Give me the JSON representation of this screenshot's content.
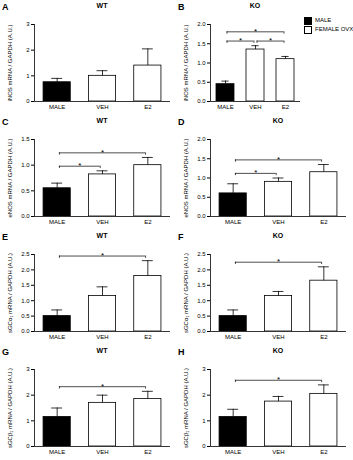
{
  "chart_data": [
    {
      "type": "bar",
      "panel": "A",
      "title": "WT",
      "ylabel": "iNOS mRNA / GAPDH (A.U.)",
      "categories": [
        "MALE",
        "VEH",
        "E2"
      ],
      "values": [
        0.75,
        1.0,
        1.4
      ],
      "errors": [
        0.15,
        0.2,
        0.65
      ],
      "colors": [
        "#000000",
        "#ffffff",
        "#ffffff"
      ],
      "ylim": [
        0,
        3
      ],
      "yticks": [
        0,
        1,
        2,
        3
      ],
      "significance": []
    },
    {
      "type": "bar",
      "panel": "B",
      "title": "KO",
      "ylabel": "iNOS mRNA / GAPDH (A.U.)",
      "categories": [
        "MALE",
        "VEH",
        "E2"
      ],
      "values": [
        0.45,
        1.35,
        1.1
      ],
      "errors": [
        0.08,
        0.1,
        0.07
      ],
      "colors": [
        "#000000",
        "#ffffff",
        "#ffffff"
      ],
      "ylim": [
        0,
        2
      ],
      "yticks": [
        {
          "value": 0,
          "label": "0.0"
        },
        {
          "value": 0.5,
          "label": "0.5"
        },
        {
          "value": 1,
          "label": "1.0"
        },
        {
          "value": 1.5,
          "label": "1.5"
        },
        {
          "value": 2,
          "label": "2.0"
        }
      ],
      "significance": [
        {
          "from": "MALE",
          "to": "VEH",
          "label": "*"
        },
        {
          "from": "VEH",
          "to": "E2",
          "label": "*"
        },
        {
          "from": "MALE",
          "to": "E2",
          "label": "*"
        }
      ],
      "legend": "right",
      "legend_items": [
        {
          "name": "MALE",
          "color": "#000000"
        },
        {
          "name": "FEMALE OVX",
          "color": "#ffffff"
        }
      ]
    },
    {
      "type": "bar",
      "panel": "C",
      "title": "WT",
      "ylabel": "eNOS mRNA / GAPDH (A.U.)",
      "categories": [
        "MALE",
        "VEH",
        "E2"
      ],
      "values": [
        0.55,
        0.82,
        1.0
      ],
      "errors": [
        0.1,
        0.07,
        0.15
      ],
      "colors": [
        "#000000",
        "#ffffff",
        "#ffffff"
      ],
      "ylim": [
        0,
        1.5
      ],
      "yticks": [
        {
          "value": 0,
          "label": "0.0"
        },
        {
          "value": 0.5,
          "label": "0.5"
        },
        {
          "value": 1,
          "label": "1.0"
        },
        {
          "value": 1.5,
          "label": "1.5"
        }
      ],
      "significance": [
        {
          "from": "MALE",
          "to": "VEH",
          "label": "*"
        },
        {
          "from": "MALE",
          "to": "E2",
          "label": "*"
        }
      ]
    },
    {
      "type": "bar",
      "panel": "D",
      "title": "KO",
      "ylabel": "eNOS mRNA / GAPDH (A.U.)",
      "categories": [
        "MALE",
        "VEH",
        "E2"
      ],
      "values": [
        0.6,
        0.9,
        1.15
      ],
      "errors": [
        0.25,
        0.1,
        0.2
      ],
      "colors": [
        "#000000",
        "#ffffff",
        "#ffffff"
      ],
      "ylim": [
        0,
        2
      ],
      "yticks": [
        {
          "value": 0,
          "label": "0.0"
        },
        {
          "value": 0.5,
          "label": "0.5"
        },
        {
          "value": 1,
          "label": "1.0"
        },
        {
          "value": 1.5,
          "label": "1.5"
        },
        {
          "value": 2,
          "label": "2.0"
        }
      ],
      "significance": [
        {
          "from": "MALE",
          "to": "VEH",
          "label": "*"
        },
        {
          "from": "MALE",
          "to": "E2",
          "label": "*"
        }
      ]
    },
    {
      "type": "bar",
      "panel": "E",
      "title": "WT",
      "ylabel": "sGCα₁ mRNA / GAPDH (A.U.)",
      "categories": [
        "MALE",
        "VEH",
        "E2"
      ],
      "values": [
        0.5,
        1.15,
        1.8
      ],
      "errors": [
        0.2,
        0.3,
        0.5
      ],
      "colors": [
        "#000000",
        "#ffffff",
        "#ffffff"
      ],
      "ylim": [
        0,
        2.5
      ],
      "yticks": [
        {
          "value": 0,
          "label": "0.0"
        },
        {
          "value": 0.5,
          "label": "0.5"
        },
        {
          "value": 1,
          "label": "1.0"
        },
        {
          "value": 1.5,
          "label": "1.5"
        },
        {
          "value": 2,
          "label": "2.0"
        },
        {
          "value": 2.5,
          "label": "2.5"
        }
      ],
      "significance": [
        {
          "from": "MALE",
          "to": "E2",
          "label": "*"
        }
      ]
    },
    {
      "type": "bar",
      "panel": "F",
      "title": "KO",
      "ylabel": "sGCα₁ mRNA / GAPDH (A.U.)",
      "categories": [
        "MALE",
        "VEH",
        "E2"
      ],
      "values": [
        0.5,
        1.15,
        1.65
      ],
      "errors": [
        0.2,
        0.15,
        0.45
      ],
      "colors": [
        "#000000",
        "#ffffff",
        "#ffffff"
      ],
      "ylim": [
        0,
        2.5
      ],
      "yticks": [
        {
          "value": 0,
          "label": "0.0"
        },
        {
          "value": 0.5,
          "label": "0.5"
        },
        {
          "value": 1,
          "label": "1.0"
        },
        {
          "value": 1.5,
          "label": "1.5"
        },
        {
          "value": 2,
          "label": "2.0"
        },
        {
          "value": 2.5,
          "label": "2.5"
        }
      ],
      "significance": [
        {
          "from": "MALE",
          "to": "E2",
          "label": "*"
        }
      ]
    },
    {
      "type": "bar",
      "panel": "G",
      "title": "WT",
      "ylabel": "sGCβ₁ mRNA / GAPDH (A.U.)",
      "categories": [
        "MALE",
        "VEH",
        "E2"
      ],
      "values": [
        1.15,
        1.7,
        1.85
      ],
      "errors": [
        0.35,
        0.3,
        0.3
      ],
      "colors": [
        "#000000",
        "#ffffff",
        "#ffffff"
      ],
      "ylim": [
        0,
        3
      ],
      "yticks": [
        0,
        1,
        2,
        3
      ],
      "significance": [
        {
          "from": "MALE",
          "to": "E2",
          "label": "*"
        }
      ]
    },
    {
      "type": "bar",
      "panel": "H",
      "title": "KO",
      "ylabel": "sGCβ₁ mRNA / GAPDH (A.U.)",
      "categories": [
        "MALE",
        "VEH",
        "E2"
      ],
      "values": [
        1.15,
        1.75,
        2.05
      ],
      "errors": [
        0.3,
        0.2,
        0.35
      ],
      "colors": [
        "#000000",
        "#ffffff",
        "#ffffff"
      ],
      "ylim": [
        0,
        3
      ],
      "yticks": [
        0,
        1,
        2,
        3
      ],
      "significance": [
        {
          "from": "MALE",
          "to": "E2",
          "label": "*"
        }
      ]
    }
  ]
}
